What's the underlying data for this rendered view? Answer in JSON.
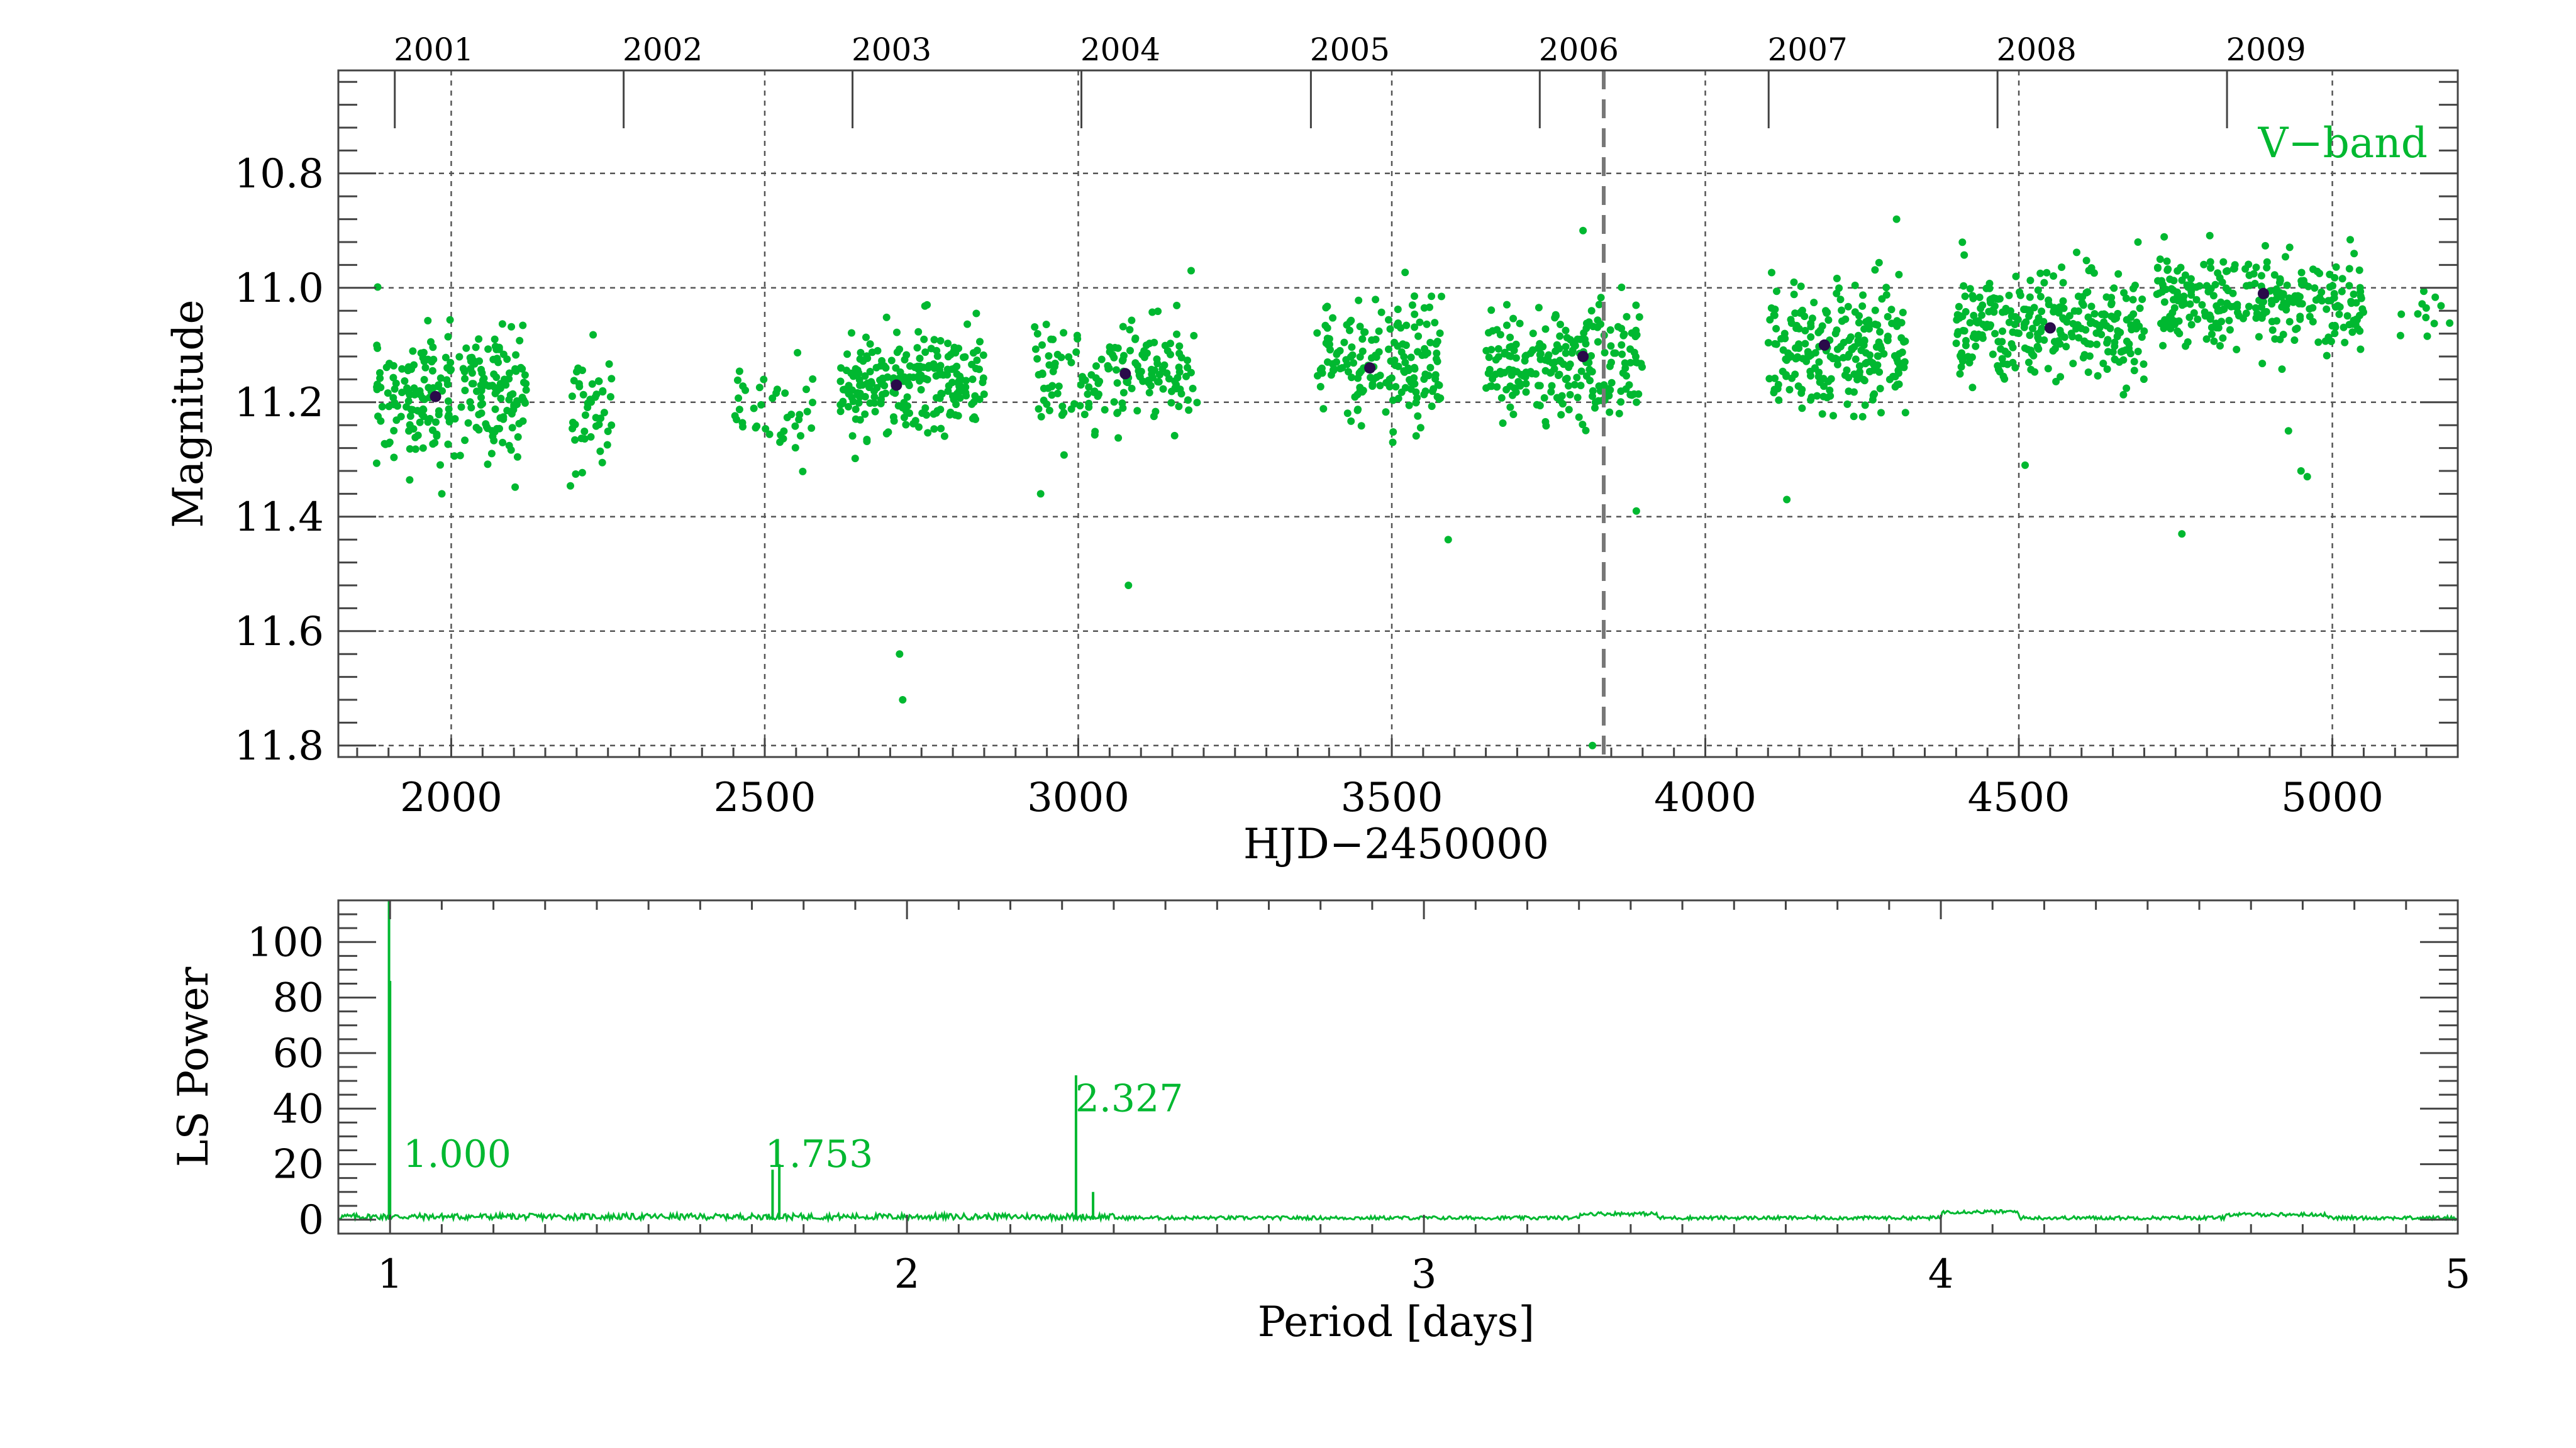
{
  "colors": {
    "data": "#00b830",
    "mean": "#2a0a4a",
    "grid": "#333333"
  },
  "chart_data": [
    {
      "type": "scatter",
      "title": "",
      "xlabel": "HJD−2450000",
      "ylabel": "Magnitude",
      "xlim": [
        1820,
        5200
      ],
      "ylim": [
        11.82,
        10.62
      ],
      "y_inverted": true,
      "x_ticks": [
        2000,
        2500,
        3000,
        3500,
        4000,
        4500,
        5000
      ],
      "y_ticks": [
        10.8,
        11.0,
        11.2,
        11.4,
        11.6,
        11.8
      ],
      "y_tick_labels": [
        "10.8",
        "11.0",
        "11.2",
        "11.4",
        "11.6",
        "11.8"
      ],
      "top_axis_years": [
        {
          "label": "2001",
          "hjd": 1910
        },
        {
          "label": "2002",
          "hjd": 2275
        },
        {
          "label": "2003",
          "hjd": 2640
        },
        {
          "label": "2004",
          "hjd": 3005
        },
        {
          "label": "2005",
          "hjd": 3371
        },
        {
          "label": "2006",
          "hjd": 3736
        },
        {
          "label": "2007",
          "hjd": 4101
        },
        {
          "label": "2008",
          "hjd": 4466
        },
        {
          "label": "2009",
          "hjd": 4832
        }
      ],
      "band_label": "V−band",
      "marker_line_hjd": 3838,
      "grid": true,
      "seasons": [
        {
          "x_range": [
            1880,
            2120
          ],
          "y_center": 11.19,
          "y_spread": 0.055,
          "n": 240
        },
        {
          "x_range": [
            2190,
            2260
          ],
          "y_center": 11.21,
          "y_spread": 0.05,
          "n": 45
        },
        {
          "x_range": [
            2450,
            2580
          ],
          "y_center": 11.21,
          "y_spread": 0.04,
          "n": 40
        },
        {
          "x_range": [
            2620,
            2850
          ],
          "y_center": 11.16,
          "y_spread": 0.045,
          "n": 230
        },
        {
          "x_range": [
            2930,
            3190
          ],
          "y_center": 11.15,
          "y_spread": 0.045,
          "n": 170
        },
        {
          "x_range": [
            3380,
            3580
          ],
          "y_center": 11.13,
          "y_spread": 0.055,
          "n": 180
        },
        {
          "x_range": [
            3650,
            3900
          ],
          "y_center": 11.13,
          "y_spread": 0.05,
          "n": 230
        },
        {
          "x_range": [
            4100,
            4320
          ],
          "y_center": 11.1,
          "y_spread": 0.055,
          "n": 230
        },
        {
          "x_range": [
            4400,
            4700
          ],
          "y_center": 11.07,
          "y_spread": 0.045,
          "n": 280
        },
        {
          "x_range": [
            4720,
            5050
          ],
          "y_center": 11.02,
          "y_spread": 0.045,
          "n": 270
        },
        {
          "x_range": [
            5100,
            5190
          ],
          "y_center": 11.04,
          "y_spread": 0.03,
          "n": 12
        }
      ],
      "outliers": [
        {
          "x": 1985,
          "y": 11.36
        },
        {
          "x": 2715,
          "y": 11.64
        },
        {
          "x": 2720,
          "y": 11.72
        },
        {
          "x": 2940,
          "y": 11.36
        },
        {
          "x": 3080,
          "y": 11.52
        },
        {
          "x": 3590,
          "y": 11.44
        },
        {
          "x": 3805,
          "y": 10.9
        },
        {
          "x": 3820,
          "y": 11.8
        },
        {
          "x": 3890,
          "y": 11.39
        },
        {
          "x": 4130,
          "y": 11.37
        },
        {
          "x": 4305,
          "y": 10.88
        },
        {
          "x": 4510,
          "y": 11.31
        },
        {
          "x": 4760,
          "y": 11.43
        },
        {
          "x": 4930,
          "y": 11.25
        },
        {
          "x": 4950,
          "y": 11.32
        },
        {
          "x": 4960,
          "y": 11.33
        },
        {
          "x": 4690,
          "y": 10.92
        },
        {
          "x": 3180,
          "y": 10.97
        }
      ],
      "seasonal_means": [
        {
          "x": 1975,
          "y": 11.19
        },
        {
          "x": 2710,
          "y": 11.17
        },
        {
          "x": 3075,
          "y": 11.15
        },
        {
          "x": 3465,
          "y": 11.14
        },
        {
          "x": 3805,
          "y": 11.12
        },
        {
          "x": 4190,
          "y": 11.1
        },
        {
          "x": 4550,
          "y": 11.07
        },
        {
          "x": 4890,
          "y": 11.01
        }
      ]
    },
    {
      "type": "line",
      "title": "",
      "xlabel": "Period [days]",
      "ylabel": "LS Power",
      "xlim": [
        0.9,
        5.0
      ],
      "ylim": [
        -5,
        115
      ],
      "x_ticks": [
        1,
        2,
        3,
        4,
        5
      ],
      "y_ticks": [
        0,
        20,
        40,
        60,
        80,
        100
      ],
      "peaks": [
        {
          "period": 0.998,
          "power": 115
        },
        {
          "period": 1.0,
          "power": 86
        },
        {
          "period": 1.74,
          "power": 18
        },
        {
          "period": 1.753,
          "power": 20
        },
        {
          "period": 2.327,
          "power": 52
        },
        {
          "period": 2.36,
          "power": 10
        }
      ],
      "annotations": [
        {
          "text": "1.000",
          "period": 1.13,
          "power": 19
        },
        {
          "text": "1.753",
          "period": 1.83,
          "power": 19
        },
        {
          "text": "2.327",
          "period": 2.43,
          "power": 39
        }
      ]
    }
  ]
}
